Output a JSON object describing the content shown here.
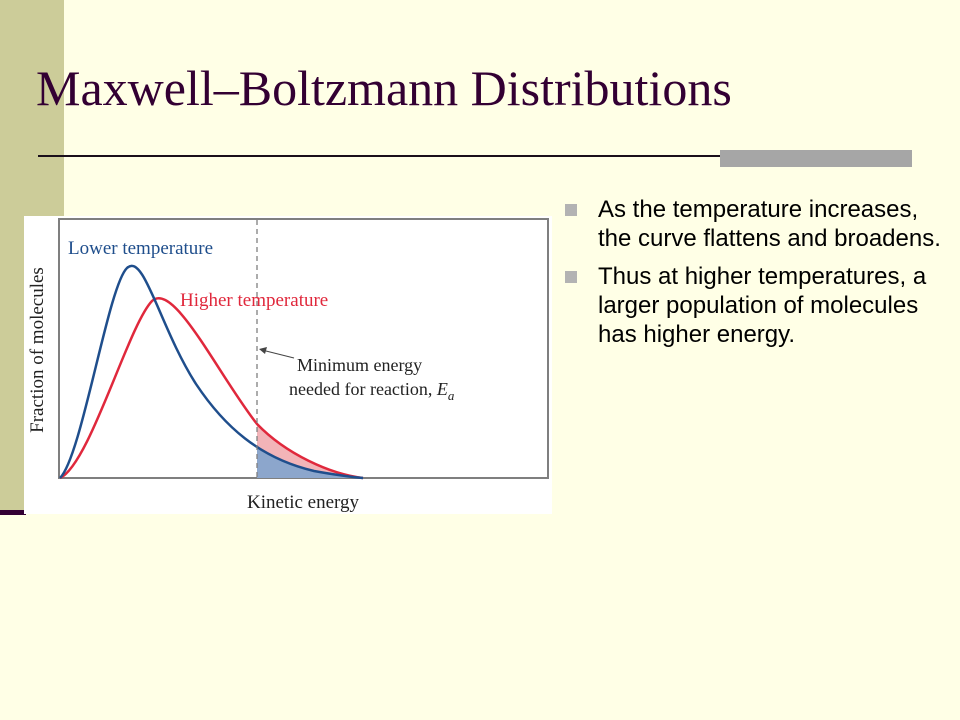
{
  "slide": {
    "title": "Maxwell–Boltzmann Distributions",
    "bullets": [
      {
        "text": "As the temperature increases, the curve flattens and broadens."
      },
      {
        "text": "Thus at higher temperatures, a larger population of molecules has higher energy."
      }
    ]
  },
  "figure": {
    "x_axis_label": "Kinetic energy",
    "y_axis_label": "Fraction of molecules",
    "series": [
      {
        "name": "Lower temperature",
        "color": "#1F4E8C"
      },
      {
        "name": "Higher temperature",
        "color": "#E0283C"
      }
    ],
    "annotation": {
      "line1": "Minimum energy",
      "line2": "needed for reaction, ",
      "symbol": "E",
      "subscript": "a"
    }
  },
  "colors": {
    "background": "#FFFFE6",
    "stripe": "#CCCC99",
    "title": "#330033",
    "bullet_marker": "#B3B3B3"
  }
}
